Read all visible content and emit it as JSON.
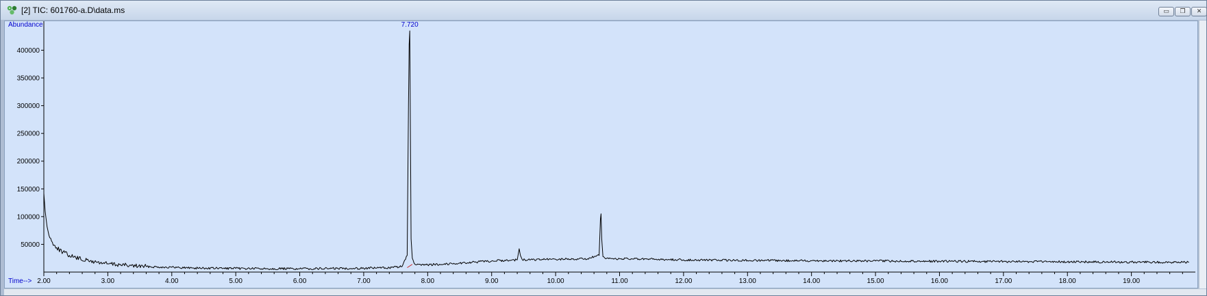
{
  "window": {
    "title": "[2] TIC: 601760-a.D\\data.ms",
    "buttons": {
      "minimize": "▭",
      "restore": "❐",
      "close": "✕"
    }
  },
  "chart_data": {
    "type": "line",
    "title": "",
    "ylabel": "Abundance",
    "xlabel": "Time-->",
    "xlim": [
      2.0,
      20.0
    ],
    "ylim": [
      0,
      440000
    ],
    "x_ticks": [
      2.0,
      3.0,
      4.0,
      5.0,
      6.0,
      7.0,
      8.0,
      9.0,
      10.0,
      11.0,
      12.0,
      13.0,
      14.0,
      15.0,
      16.0,
      17.0,
      18.0,
      19.0
    ],
    "x_tick_labels": [
      "2.00",
      "3.00",
      "4.00",
      "5.00",
      "6.00",
      "7.00",
      "8.00",
      "9.00",
      "10.00",
      "11.00",
      "12.00",
      "13.00",
      "14.00",
      "15.00",
      "16.00",
      "17.00",
      "18.00",
      "19.00"
    ],
    "y_ticks": [
      50000,
      100000,
      150000,
      200000,
      250000,
      300000,
      350000,
      400000
    ],
    "y_tick_labels": [
      "50000",
      "100000",
      "150000",
      "200000",
      "250000",
      "300000",
      "350000",
      "400000"
    ],
    "peak_annotation": {
      "x": 7.72,
      "label": "7.720"
    },
    "series": [
      {
        "x": [
          2.0,
          2.02,
          2.05,
          2.08,
          2.12,
          2.2,
          2.3,
          2.4,
          2.5,
          2.7,
          3.0,
          3.3,
          3.6,
          4.0,
          4.5,
          5.0,
          5.5,
          6.0,
          6.5,
          7.0,
          7.4,
          7.6,
          7.68,
          7.7,
          7.71,
          7.72,
          7.73,
          7.74,
          7.76,
          7.8,
          7.9,
          8.0,
          8.5,
          9.0,
          9.4,
          9.43,
          9.45,
          9.48,
          9.52,
          10.0,
          10.5,
          10.68,
          10.7,
          10.71,
          10.72,
          10.74,
          10.78,
          11.0,
          12.0,
          13.0,
          14.0,
          15.0,
          16.0,
          17.0,
          18.0,
          19.0,
          19.9
        ],
        "y": [
          142000,
          110000,
          82000,
          66000,
          56000,
          44000,
          36000,
          30000,
          26000,
          20000,
          15000,
          12000,
          10000,
          8500,
          7000,
          6500,
          6200,
          6000,
          6500,
          7000,
          8000,
          10000,
          30000,
          300000,
          410000,
          435000,
          260000,
          60000,
          25000,
          14000,
          12000,
          13000,
          16000,
          20000,
          22000,
          42000,
          30000,
          22000,
          22000,
          23000,
          24000,
          30000,
          95000,
          105000,
          60000,
          28000,
          24000,
          24000,
          22000,
          21000,
          20500,
          20000,
          19500,
          19000,
          18500,
          18000,
          17500
        ]
      }
    ]
  }
}
